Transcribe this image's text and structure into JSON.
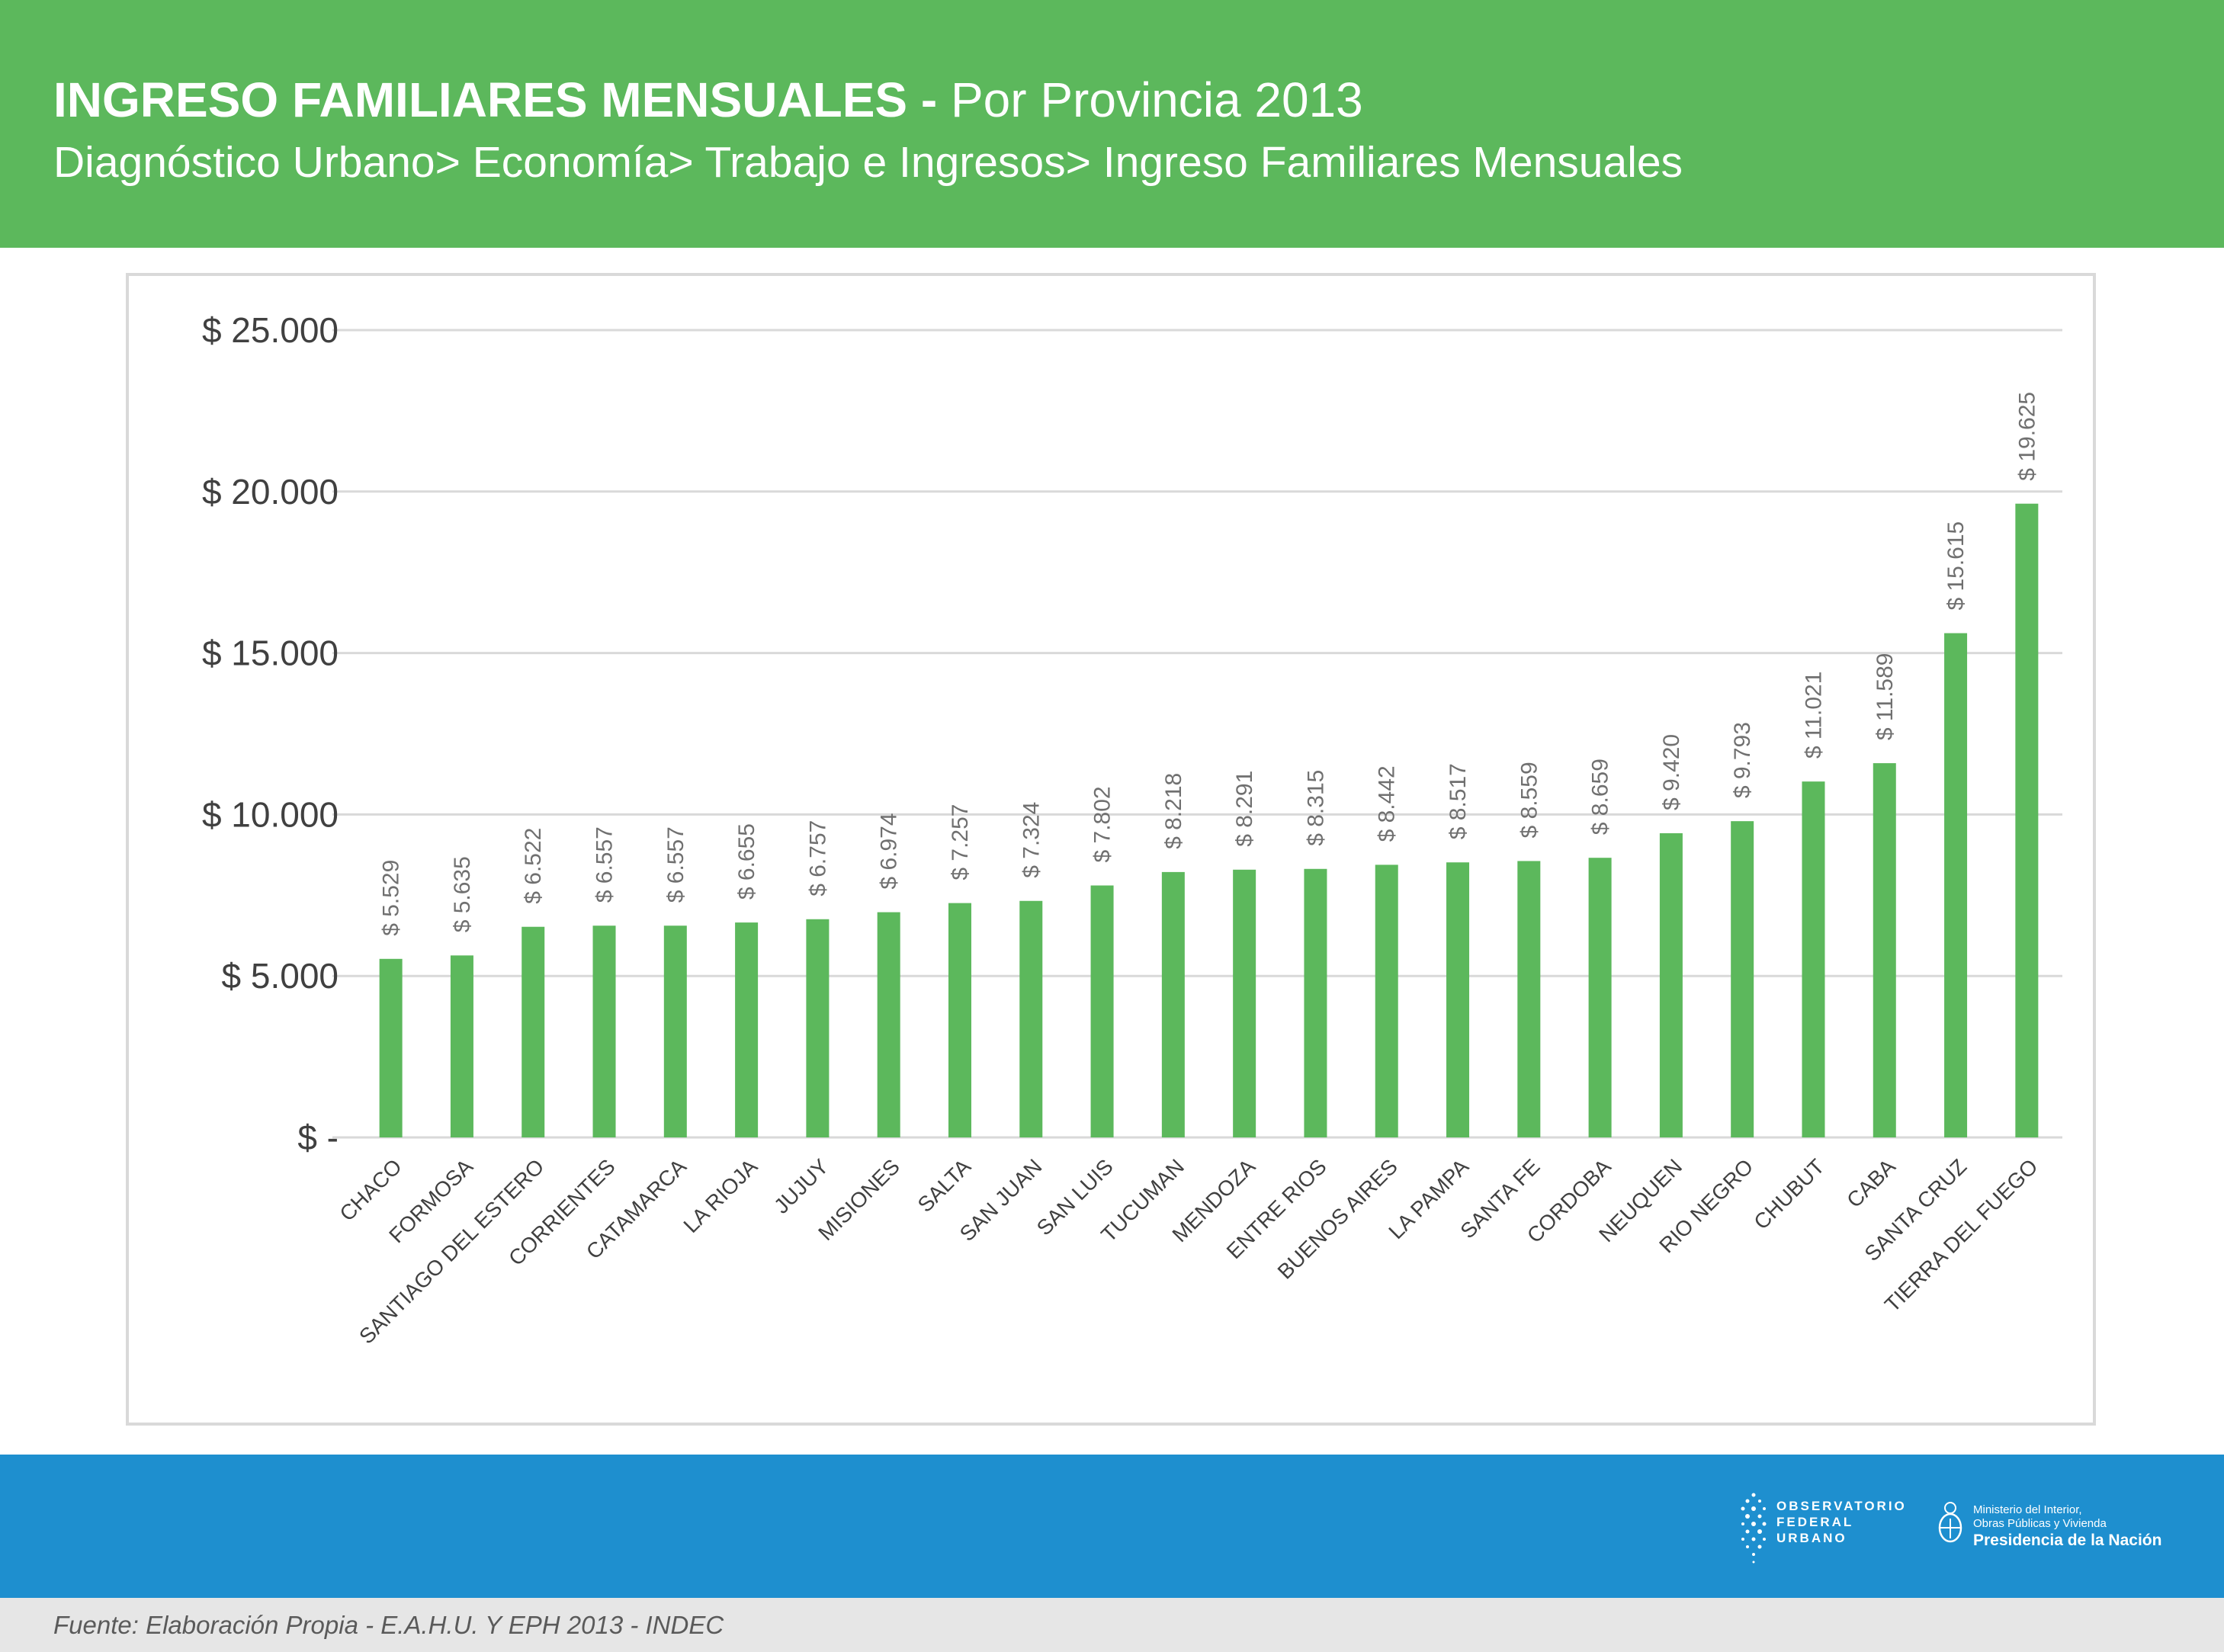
{
  "header": {
    "title_bold": "INGRESO FAMILIARES MENSUALES -",
    "title_rest": "Por Provincia 2013",
    "breadcrumb": "Diagnóstico Urbano> Economía> Trabajo e Ingresos> Ingreso Familiares Mensuales"
  },
  "colors": {
    "header_bg": "#5cb85c",
    "bar": "#5cb85c",
    "footer_bg": "#1e8fcf",
    "source_bg": "#e6e6e6"
  },
  "chart_data": {
    "type": "bar",
    "categories": [
      "CHACO",
      "FORMOSA",
      "SANTIAGO DEL ESTERO",
      "CORRIENTES",
      "CATAMARCA",
      "LA RIOJA",
      "JUJUY",
      "MISIONES",
      "SALTA",
      "SAN JUAN",
      "SAN LUIS",
      "TUCUMAN",
      "MENDOZA",
      "ENTRE RIOS",
      "BUENOS AIRES",
      "LA PAMPA",
      "SANTA FE",
      "CORDOBA",
      "NEUQUEN",
      "RIO NEGRO",
      "CHUBUT",
      "CABA",
      "SANTA CRUZ",
      "TIERRA DEL FUEGO"
    ],
    "values": [
      5529,
      5635,
      6522,
      6557,
      6557,
      6655,
      6757,
      6974,
      7257,
      7324,
      7802,
      8218,
      8291,
      8315,
      8442,
      8517,
      8559,
      8659,
      9420,
      9793,
      11021,
      11589,
      15615,
      19625
    ],
    "value_labels": [
      "$ 5.529",
      "$ 5.635",
      "$ 6.522",
      "$ 6.557",
      "$ 6.557",
      "$ 6.655",
      "$ 6.757",
      "$ 6.974",
      "$ 7.257",
      "$ 7.324",
      "$ 7.802",
      "$ 8.218",
      "$ 8.291",
      "$ 8.315",
      "$ 8.442",
      "$ 8.517",
      "$ 8.559",
      "$ 8.659",
      "$ 9.420",
      "$ 9.793",
      "$ 11.021",
      "$ 11.589",
      "$ 15.615",
      "$ 19.625"
    ],
    "ylim": [
      0,
      25000
    ],
    "y_ticks": [
      0,
      5000,
      10000,
      15000,
      20000,
      25000
    ],
    "y_tick_labels": [
      "$ -",
      "$ 5.000",
      "$ 10.000",
      "$ 15.000",
      "$ 20.000",
      "$ 25.000"
    ],
    "grid": true,
    "legend": "none",
    "title": "",
    "xlabel": "",
    "ylabel": ""
  },
  "footer": {
    "logo_ofu_lines": [
      "OBSERVATORIO",
      "FEDERAL",
      "URBANO"
    ],
    "ministry_line1": "Ministerio del Interior,",
    "ministry_line2": "Obras Públicas y Vivienda",
    "ministry_line3": "Presidencia de la Nación",
    "source": "Fuente: Elaboración Propia - E.A.H.U. Y EPH 2013 - INDEC"
  }
}
